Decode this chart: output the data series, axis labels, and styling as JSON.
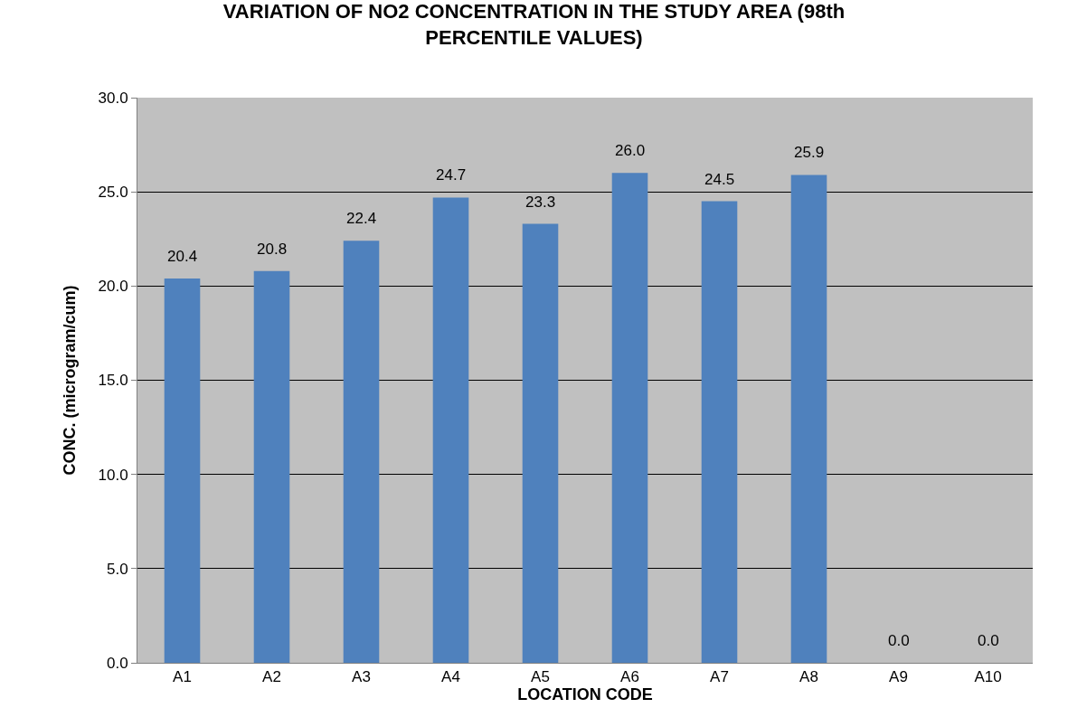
{
  "chart_data": {
    "type": "bar",
    "title": "VARIATION OF NO2 CONCENTRATION IN THE STUDY AREA (98th\nPERCENTILE VALUES)",
    "xlabel": "LOCATION CODE",
    "ylabel": "CONC. (microgram/cum)",
    "categories": [
      "A1",
      "A2",
      "A3",
      "A4",
      "A5",
      "A6",
      "A7",
      "A8",
      "A9",
      "A10"
    ],
    "values": [
      20.4,
      20.8,
      22.4,
      24.7,
      23.3,
      26.0,
      24.5,
      25.9,
      0.0,
      0.0
    ],
    "value_labels": [
      "20.4",
      "20.8",
      "22.4",
      "24.7",
      "23.3",
      "26.0",
      "24.5",
      "25.9",
      "0.0",
      "0.0"
    ],
    "color": "#4f81bd",
    "ylim": [
      0,
      30
    ],
    "yticks": [
      {
        "value": 0,
        "label": "0.0"
      },
      {
        "value": 5,
        "label": "5.0"
      },
      {
        "value": 10,
        "label": "10.0"
      },
      {
        "value": 15,
        "label": "15.0"
      },
      {
        "value": 20,
        "label": "20.0"
      },
      {
        "value": 25,
        "label": "25.0"
      },
      {
        "value": 30,
        "label": "30.0"
      }
    ],
    "grid": "y",
    "legend": false
  }
}
